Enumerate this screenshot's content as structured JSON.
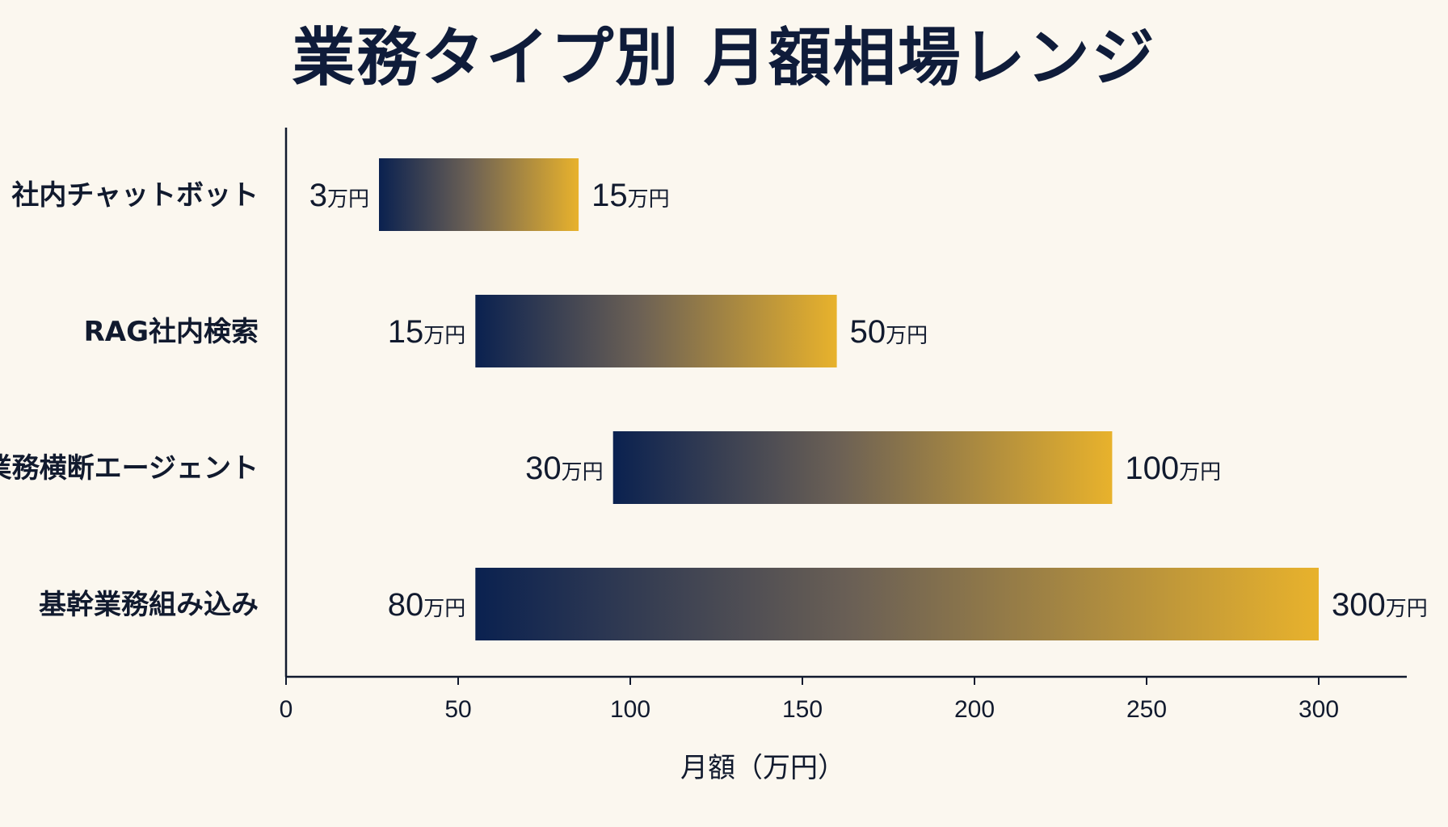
{
  "title": "業務タイプ別 月額相場レンジ",
  "colors": {
    "background": "#fbf7ef",
    "bar_start": "#0a2150",
    "bar_end": "#e8b22c",
    "axis": "#111a2e",
    "text": "#111a2e"
  },
  "chart_data": {
    "type": "bar",
    "orientation": "horizontal",
    "style": "range",
    "title": "業務タイプ別 月額相場レンジ",
    "xlabel": "月額（万円）",
    "ylabel": "",
    "unit": "万円",
    "xlim": [
      0,
      325
    ],
    "xticks": [
      0,
      50,
      100,
      150,
      200,
      250,
      300
    ],
    "grid": false,
    "categories": [
      "社内チャットボット",
      "RAG社内検索",
      "業務横断エージェント",
      "基幹業務組み込み"
    ],
    "ranges": [
      {
        "category": "社内チャットボット",
        "low": 3,
        "high": 15
      },
      {
        "category": "RAG社内検索",
        "low": 15,
        "high": 50
      },
      {
        "category": "業務横断エージェント",
        "low": 30,
        "high": 100
      },
      {
        "category": "基幹業務組み込み",
        "low": 80,
        "high": 300
      }
    ],
    "bar_positions": [
      {
        "category": "社内チャットボット",
        "start": 27,
        "end": 85
      },
      {
        "category": "RAG社内検索",
        "start": 55,
        "end": 160
      },
      {
        "category": "業務横断エージェント",
        "start": 95,
        "end": 240
      },
      {
        "category": "基幹業務組み込み",
        "start": 55,
        "end": 300
      }
    ]
  }
}
